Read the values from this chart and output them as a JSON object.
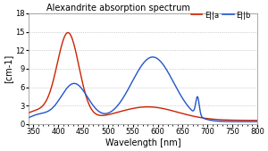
{
  "title": "Alexandrite absorption spectrum",
  "xlabel": "Wavelength [nm]",
  "ylabel": "[cm-1]",
  "xlim": [
    340,
    800
  ],
  "ylim": [
    0,
    18
  ],
  "yticks": [
    0,
    3,
    6,
    9,
    12,
    15,
    18
  ],
  "xticks": [
    350,
    400,
    450,
    500,
    550,
    600,
    650,
    700,
    750,
    800
  ],
  "color_a": "#cc2200",
  "color_b": "#2255cc",
  "legend_label_a": "E||a",
  "legend_label_b": "E||b",
  "background": "#ffffff",
  "border_color": "#cc8888"
}
